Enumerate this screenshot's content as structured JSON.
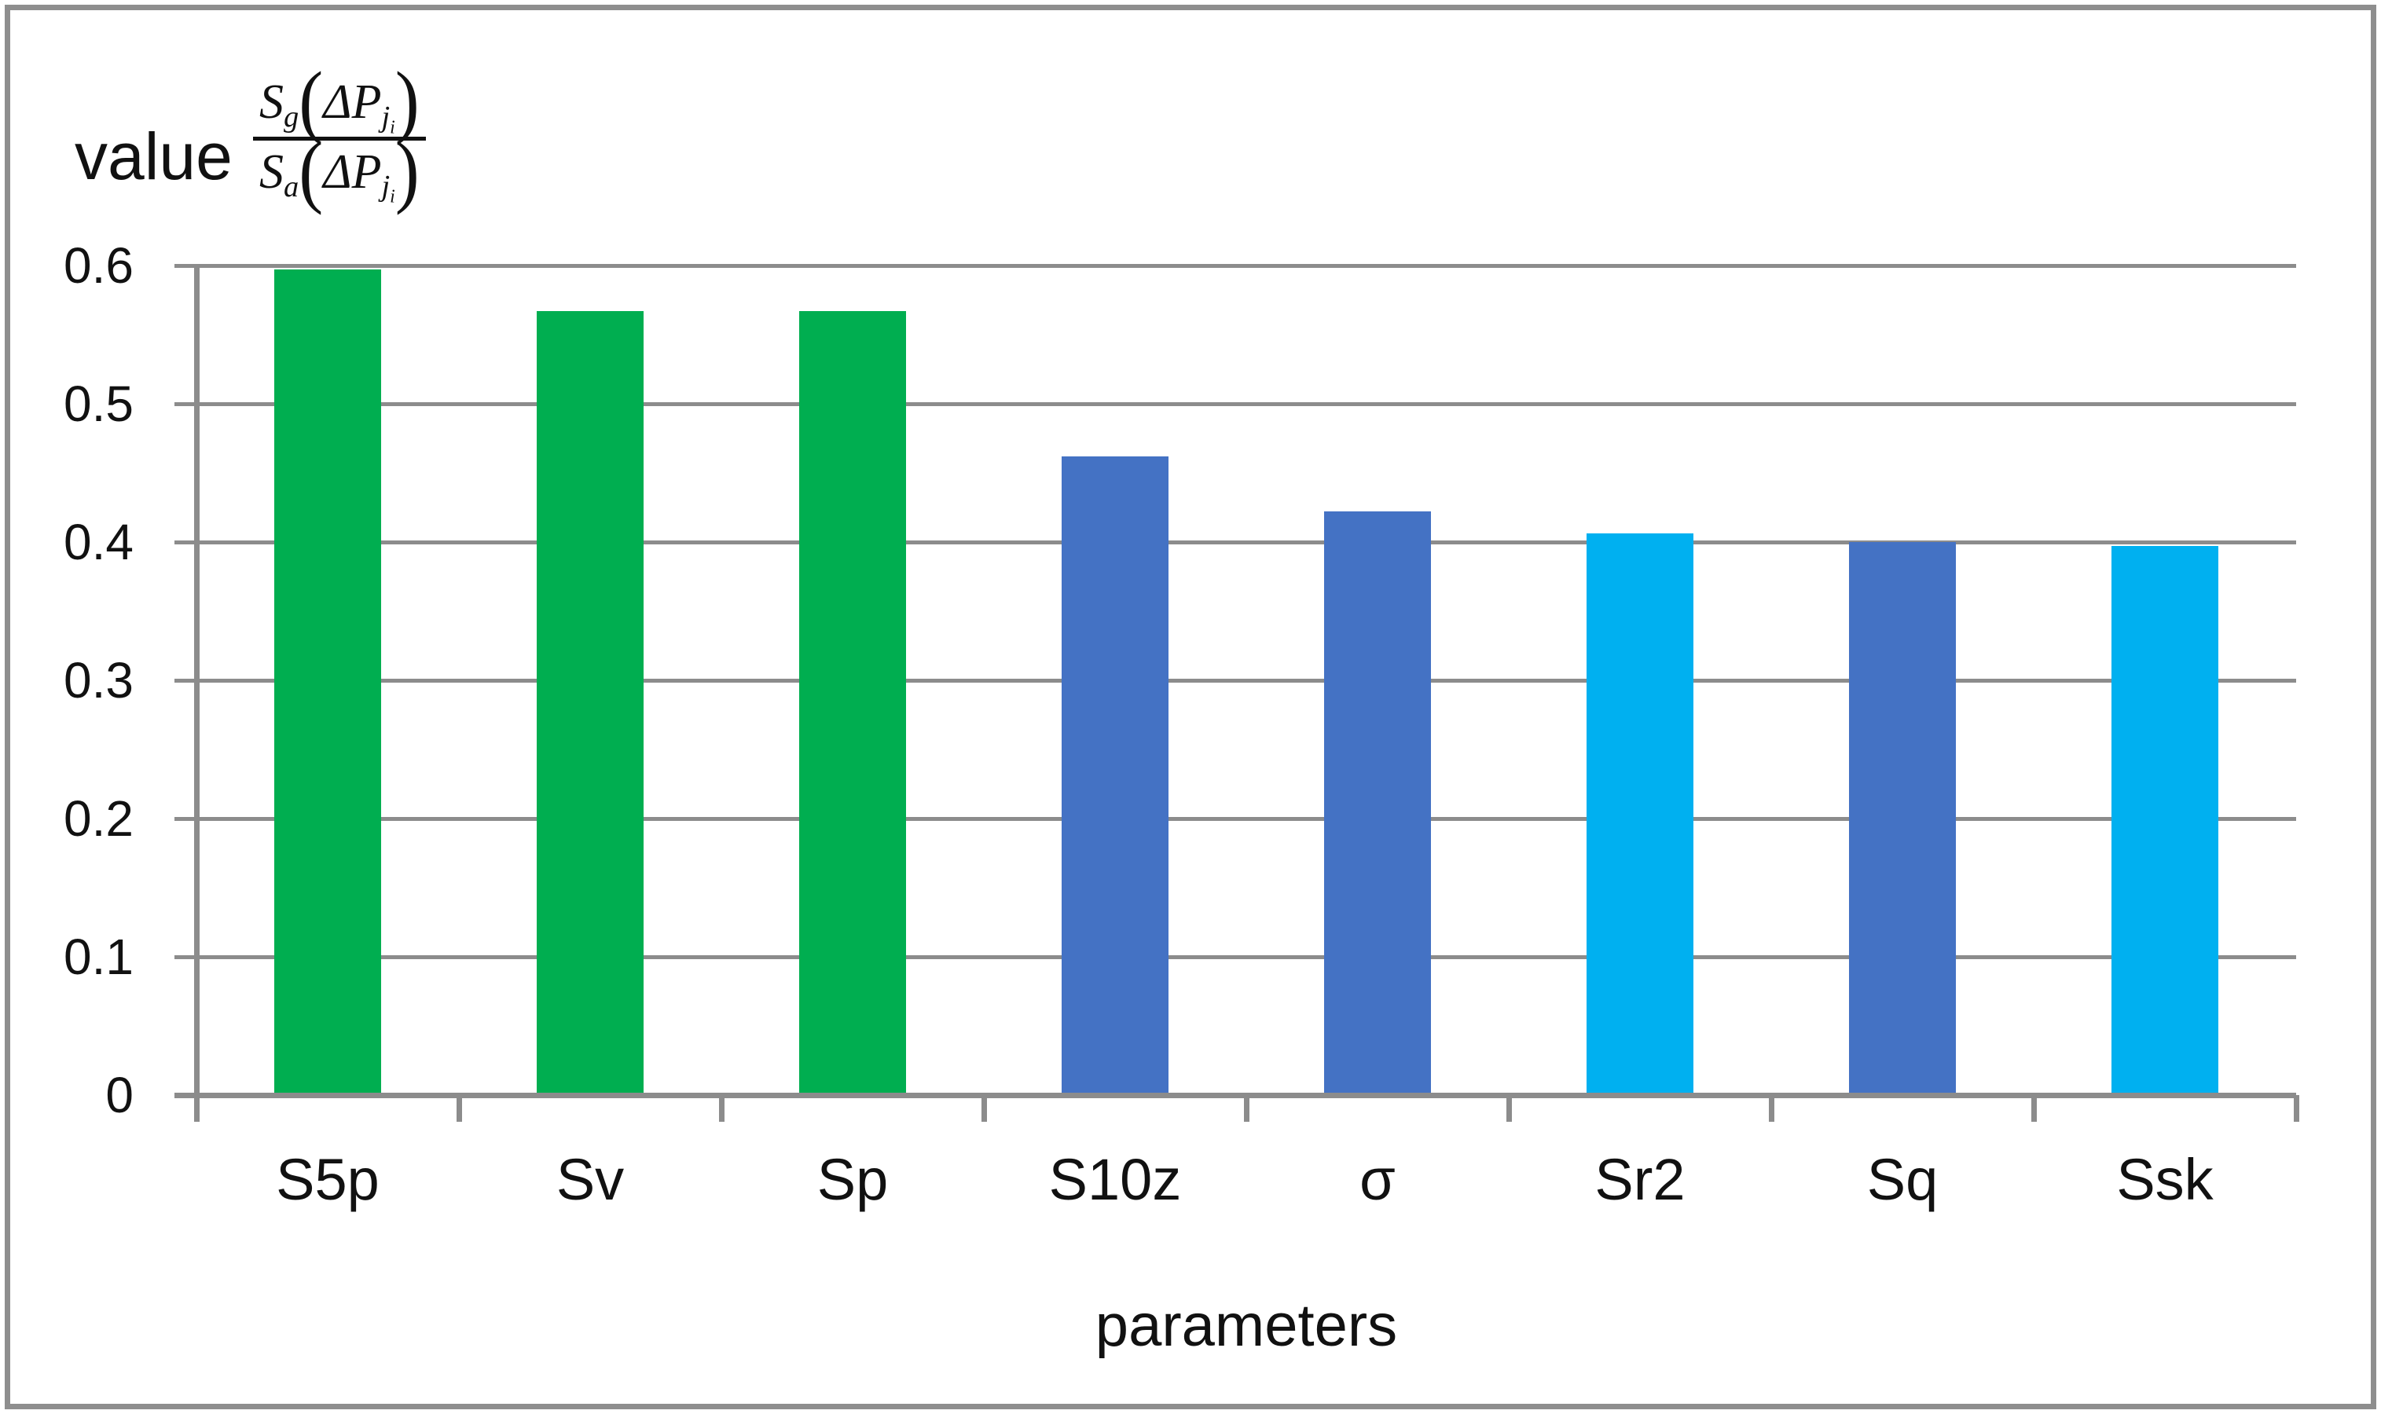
{
  "chart_data": {
    "type": "bar",
    "title": "",
    "categories": [
      "S5p",
      "Sv",
      "Sp",
      "S10z",
      "σ",
      "Sr2",
      "Sq",
      "Ssk"
    ],
    "values": [
      0.597,
      0.567,
      0.567,
      0.462,
      0.422,
      0.406,
      0.4,
      0.397
    ],
    "bar_colors": [
      "#00AE50",
      "#00AE50",
      "#00AE50",
      "#4472C4",
      "#4472C4",
      "#00B0F0",
      "#4472C4",
      "#00B0F0"
    ],
    "xlabel": "parameters",
    "ylabel": "value",
    "ylim": [
      0,
      0.6
    ],
    "ytick_step": 0.1,
    "ytick_labels": [
      "0",
      "0.1",
      "0.2",
      "0.3",
      "0.4",
      "0.5",
      "0.6"
    ],
    "grid": "horizontal-major-only",
    "legend": "none",
    "formula": {
      "num_base": "S",
      "num_sub": "g",
      "den_base": "S",
      "den_sub": "a",
      "lparen": "(",
      "rparen": ")",
      "arg": "ΔP",
      "arg_sub": "j",
      "arg_sub2": "i"
    }
  },
  "colors": {
    "axis": "#8c8c8c",
    "gridline": "#8c8c8c",
    "frame_border": "#8e8e8e",
    "background": "#ffffff",
    "text": "#111111",
    "green_bar": "#00AE50",
    "blue_bar": "#4472C4",
    "cyan_bar": "#00B0F0"
  }
}
